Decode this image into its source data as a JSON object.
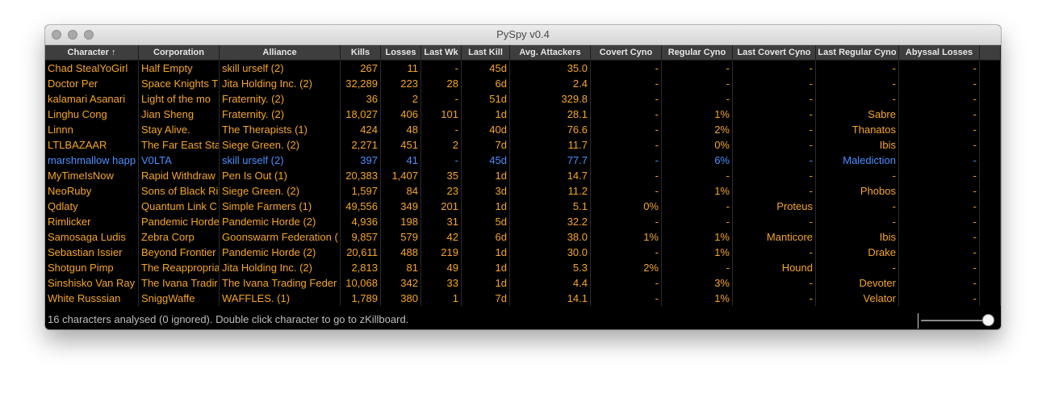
{
  "window": {
    "title": "PySpy v0.4"
  },
  "columns": [
    "Character ↑",
    "Corporation",
    "Alliance",
    "Kills",
    "Losses",
    "Last Wk",
    "Last Kill",
    "Avg. Attackers",
    "Covert Cyno",
    "Regular Cyno",
    "Last Covert Cyno",
    "Last Regular Cyno",
    "Abyssal Losses"
  ],
  "rows": [
    [
      "Chad StealYoGirl",
      "Half Empty",
      "skill urself (2)",
      "267",
      "11",
      "-",
      "45d",
      "35.0",
      "-",
      "-",
      "-",
      "-",
      "-"
    ],
    [
      "Doctor Per",
      "Space Knights T",
      "Jita Holding Inc. (2)",
      "32,289",
      "223",
      "28",
      "6d",
      "2.4",
      "-",
      "-",
      "-",
      "-",
      "-"
    ],
    [
      "kalamari Asanari",
      "Light of the mo",
      "Fraternity. (2)",
      "36",
      "2",
      "-",
      "51d",
      "329.8",
      "-",
      "-",
      "-",
      "-",
      "-"
    ],
    [
      "Linghu Cong",
      "Jian Sheng",
      "Fraternity. (2)",
      "18,027",
      "406",
      "101",
      "1d",
      "28.1",
      "-",
      "1%",
      "-",
      "Sabre",
      "-"
    ],
    [
      "Linnn",
      "Stay Alive.",
      "The Therapists (1)",
      "424",
      "48",
      "-",
      "40d",
      "76.6",
      "-",
      "2%",
      "-",
      "Thanatos",
      "-"
    ],
    [
      "LTLBAZAAR",
      "The Far East Sta",
      "Siege Green. (2)",
      "2,271",
      "451",
      "2",
      "7d",
      "11.7",
      "-",
      "0%",
      "-",
      "Ibis",
      "-"
    ],
    [
      "marshmallow happ",
      "V0LTA",
      "skill urself (2)",
      "397",
      "41",
      "-",
      "45d",
      "77.7",
      "-",
      "6%",
      "-",
      "Malediction",
      "-"
    ],
    [
      "MyTimeIsNow",
      "Rapid Withdraw",
      "Pen Is Out (1)",
      "20,383",
      "1,407",
      "35",
      "1d",
      "14.7",
      "-",
      "-",
      "-",
      "-",
      "-"
    ],
    [
      "NeoRuby",
      "Sons of Black Ri",
      "Siege Green. (2)",
      "1,597",
      "84",
      "23",
      "3d",
      "11.2",
      "-",
      "1%",
      "-",
      "Phobos",
      "-"
    ],
    [
      "Qdlaty",
      "Quantum Link C",
      "Simple Farmers (1)",
      "49,556",
      "349",
      "201",
      "1d",
      "5.1",
      "0%",
      "-",
      "Proteus",
      "-",
      "-"
    ],
    [
      "Rimlicker",
      "Pandemic Horde",
      "Pandemic Horde (2)",
      "4,936",
      "198",
      "31",
      "5d",
      "32.2",
      "-",
      "-",
      "-",
      "-",
      "-"
    ],
    [
      "Samosaga Ludis",
      "Zebra Corp",
      "Goonswarm Federation (",
      "9,857",
      "579",
      "42",
      "6d",
      "38.0",
      "1%",
      "1%",
      "Manticore",
      "Ibis",
      "-"
    ],
    [
      "Sebastian Issier",
      "Beyond Frontier",
      "Pandemic Horde (2)",
      "20,611",
      "488",
      "219",
      "1d",
      "30.0",
      "-",
      "1%",
      "-",
      "Drake",
      "-"
    ],
    [
      "Shotgun Pimp",
      "The Reappropria",
      "Jita Holding Inc. (2)",
      "2,813",
      "81",
      "49",
      "1d",
      "5.3",
      "2%",
      "-",
      "Hound",
      "-",
      "-"
    ],
    [
      "Sinshisko Van Ray",
      "The Ivana Tradir",
      "The Ivana Trading Feder",
      "10,068",
      "342",
      "33",
      "1d",
      "4.4",
      "-",
      "3%",
      "-",
      "Devoter",
      "-"
    ],
    [
      "White Russsian",
      "SniggWaffe",
      "WAFFLES. (1)",
      "1,789",
      "380",
      "1",
      "7d",
      "14.1",
      "-",
      "1%",
      "-",
      "Velator",
      "-"
    ]
  ],
  "selected_row": 6,
  "status": "16 characters analysed (0 ignored). Double click character to go  to zKillboard.",
  "colors": {
    "text": "#f5a623",
    "selected": "#4a90ff",
    "background": "#000000"
  }
}
